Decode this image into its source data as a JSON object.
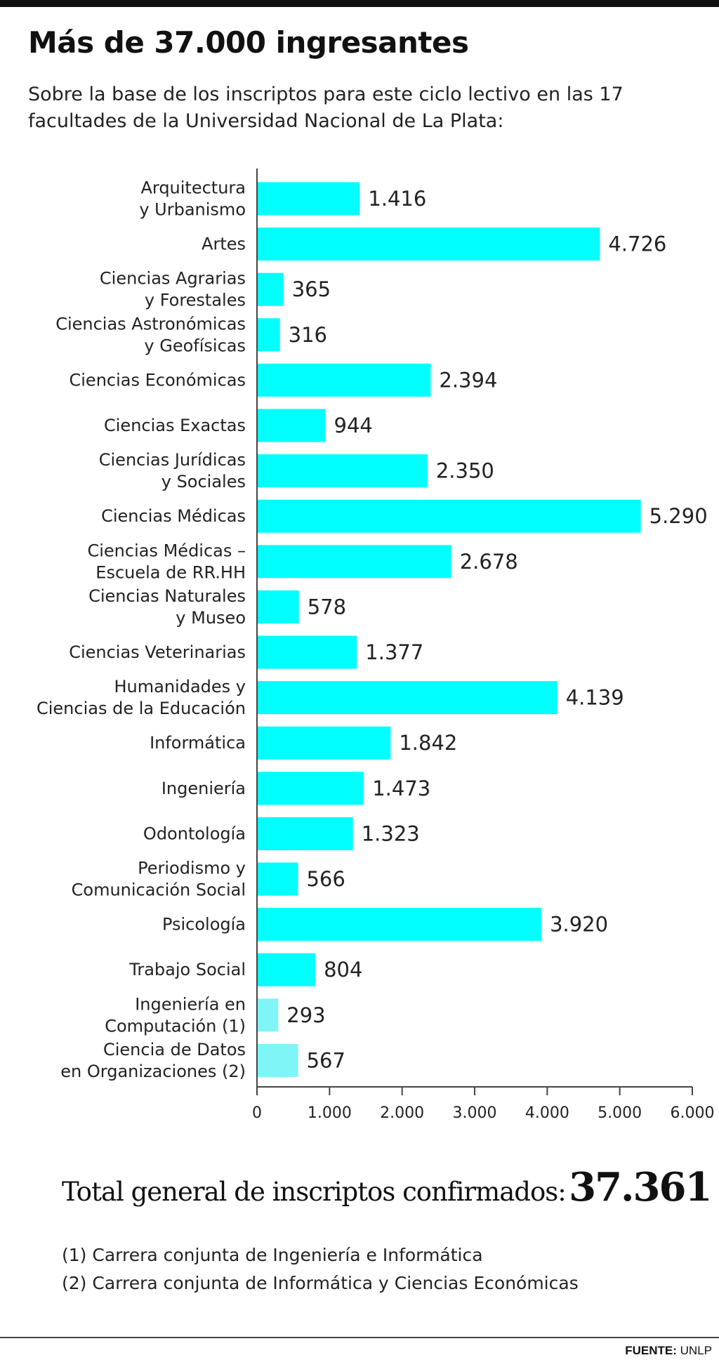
{
  "colors": {
    "bar": "#00ffff",
    "bar_light": "#7ff5f8",
    "axis": "#444444",
    "text": "#222222"
  },
  "header": {
    "title": "Más de 37.000 ingresantes",
    "subtitle": "Sobre la base de los inscriptos para este ciclo lectivo en las 17 facultades de la Universidad Nacional de La Plata:"
  },
  "chart_data": {
    "type": "bar",
    "orientation": "horizontal",
    "categories": [
      [
        "Arquitectura",
        "y Urbanismo"
      ],
      [
        "Artes"
      ],
      [
        "Ciencias Agrarias",
        "y Forestales"
      ],
      [
        "Ciencias Astronómicas",
        "y Geofísicas"
      ],
      [
        "Ciencias Económicas"
      ],
      [
        "Ciencias Exactas"
      ],
      [
        "Ciencias Jurídicas",
        "y Sociales"
      ],
      [
        "Ciencias Médicas"
      ],
      [
        "Ciencias Médicas –",
        "Escuela de RR.HH"
      ],
      [
        "Ciencias Naturales",
        "y Museo"
      ],
      [
        "Ciencias Veterinarias"
      ],
      [
        "Humanidades y",
        "Ciencias de la Educación"
      ],
      [
        "Informática"
      ],
      [
        "Ingeniería"
      ],
      [
        "Odontología"
      ],
      [
        "Periodismo y",
        "Comunicación Social"
      ],
      [
        "Psicología"
      ],
      [
        "Trabajo Social"
      ],
      [
        "Ingeniería en",
        "Computación (1)"
      ],
      [
        "Ciencia de Datos",
        "en Organizaciones (2)"
      ]
    ],
    "values": [
      1416,
      4726,
      365,
      316,
      2394,
      944,
      2350,
      5290,
      2678,
      578,
      1377,
      4139,
      1842,
      1473,
      1323,
      566,
      3920,
      804,
      293,
      567
    ],
    "value_labels": [
      "1.416",
      "4.726",
      "365",
      "316",
      "2.394",
      "944",
      "2.350",
      "5.290",
      "2.678",
      "578",
      "1.377",
      "4.139",
      "1.842",
      "1.473",
      "1.323",
      "566",
      "3.920",
      "804",
      "293",
      "567"
    ],
    "highlight_light": [
      18,
      19
    ],
    "xlim": [
      0,
      6000
    ],
    "xticks": [
      0,
      1000,
      2000,
      3000,
      4000,
      5000,
      6000
    ],
    "xtick_labels": [
      "0",
      "1.000",
      "2.000",
      "3.000",
      "4.000",
      "5.000",
      "6.000"
    ],
    "grid": false,
    "legend": "none"
  },
  "total": {
    "label": "Total general de inscriptos confirmados:",
    "value": "37.361"
  },
  "notes": [
    "(1) Carrera conjunta de Ingeniería e Informática",
    "(2) Carrera conjunta de Informática y Ciencias Económicas"
  ],
  "source": {
    "label": "FUENTE:",
    "value": "UNLP"
  }
}
